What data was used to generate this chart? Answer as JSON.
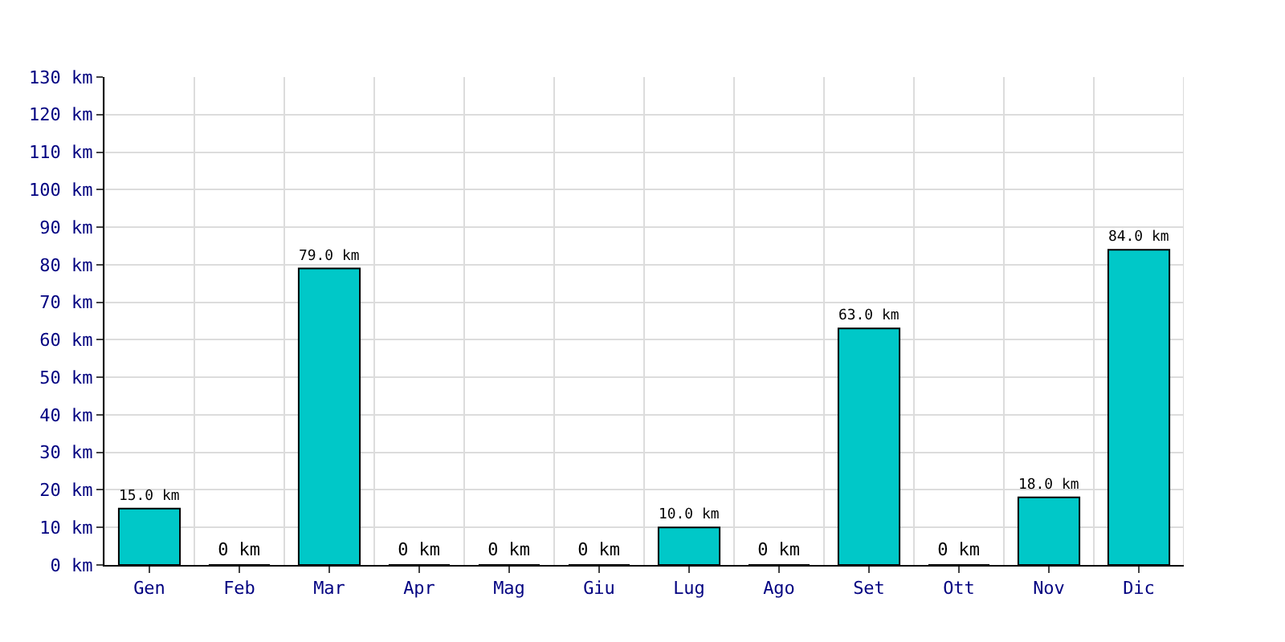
{
  "chart_data": {
    "type": "bar",
    "categories": [
      "Gen",
      "Feb",
      "Mar",
      "Apr",
      "Mag",
      "Giu",
      "Lug",
      "Ago",
      "Set",
      "Ott",
      "Nov",
      "Dic"
    ],
    "values": [
      15,
      0,
      79,
      0,
      0,
      0,
      10,
      0,
      63,
      0,
      18,
      84
    ],
    "value_labels": [
      "15.0 km",
      "0 km",
      "79.0 km",
      "0 km",
      "0 km",
      "0 km",
      "10.0 km",
      "0 km",
      "63.0 km",
      "0 km",
      "18.0 km",
      "84.0 km"
    ],
    "color": "#00c8c8",
    "ylim": [
      0,
      130
    ],
    "yticks": [
      {
        "value": 0,
        "label": "0 km"
      },
      {
        "value": 10,
        "label": "10 km"
      },
      {
        "value": 20,
        "label": "20 km"
      },
      {
        "value": 30,
        "label": "30 km"
      },
      {
        "value": 40,
        "label": "40 km"
      },
      {
        "value": 50,
        "label": "50 km"
      },
      {
        "value": 60,
        "label": "60 km"
      },
      {
        "value": 70,
        "label": "70 km"
      },
      {
        "value": 80,
        "label": "80 km"
      },
      {
        "value": 90,
        "label": "90 km"
      },
      {
        "value": 100,
        "label": "100 km"
      },
      {
        "value": 110,
        "label": "110 km"
      },
      {
        "value": 120,
        "label": "120 km"
      },
      {
        "value": 130,
        "label": "130 km"
      }
    ],
    "grid": true
  }
}
